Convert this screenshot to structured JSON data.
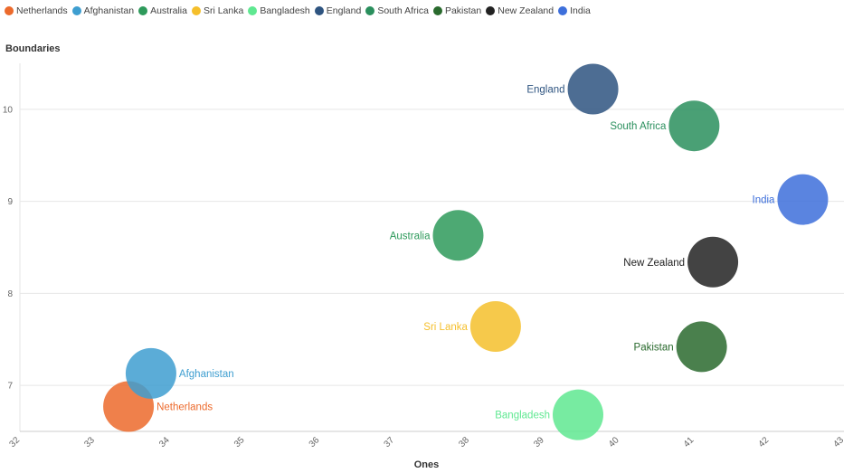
{
  "chart_data": {
    "type": "scatter",
    "title": "",
    "xlabel": "Ones",
    "ylabel": "Boundaries",
    "xlim": [
      32,
      43
    ],
    "ylim": [
      6.5,
      10.5
    ],
    "xticks": [
      "32",
      "33",
      "34",
      "35",
      "36",
      "37",
      "38",
      "39",
      "40",
      "41",
      "42",
      "43"
    ],
    "yticks": [
      "7",
      "8",
      "9",
      "10"
    ],
    "legend_position": "top-left",
    "series": [
      {
        "name": "Netherlands",
        "x": 33.45,
        "y": 6.77,
        "color": "#EC6A2C"
      },
      {
        "name": "Afghanistan",
        "x": 33.75,
        "y": 7.13,
        "color": "#3E9ED0"
      },
      {
        "name": "Australia",
        "x": 37.85,
        "y": 8.63,
        "color": "#2E9A5B"
      },
      {
        "name": "Sri Lanka",
        "x": 38.35,
        "y": 7.64,
        "color": "#F5BF2B"
      },
      {
        "name": "Bangladesh",
        "x": 39.45,
        "y": 6.68,
        "color": "#5FE891"
      },
      {
        "name": "England",
        "x": 39.65,
        "y": 10.22,
        "color": "#2E5480"
      },
      {
        "name": "South Africa",
        "x": 41.0,
        "y": 9.82,
        "color": "#2A8F5D"
      },
      {
        "name": "Pakistan",
        "x": 41.1,
        "y": 7.42,
        "color": "#2A6A2E"
      },
      {
        "name": "New Zealand",
        "x": 41.25,
        "y": 8.34,
        "color": "#222222"
      },
      {
        "name": "India",
        "x": 42.45,
        "y": 9.02,
        "color": "#3D6FDB"
      }
    ]
  }
}
